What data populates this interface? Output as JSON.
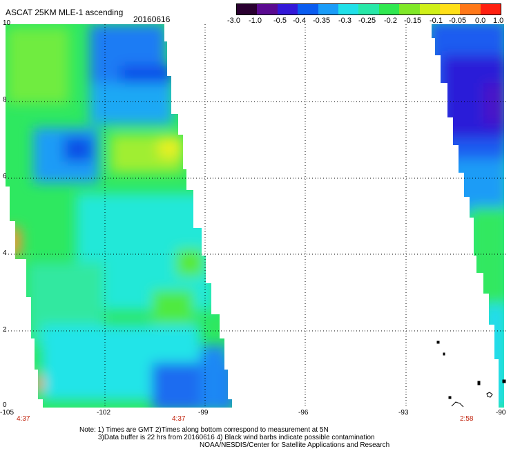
{
  "header": {
    "title": "ASCAT 25KM MLE-1 ascending",
    "date": "20160616"
  },
  "colorbar": {
    "tick_labels": [
      "-3.0",
      "-1.0",
      "-0.5",
      "-0.4",
      "-0.35",
      "-0.3",
      "-0.25",
      "-0.2",
      "-0.15",
      "-0.1",
      "-0.05",
      "0.0",
      "1.0"
    ],
    "colors": [
      "#2a0030",
      "#5a0a90",
      "#3318d8",
      "#0a5cf0",
      "#1a9cf8",
      "#20e0e8",
      "#28e8a8",
      "#30e850",
      "#80e828",
      "#d0f018",
      "#ffe018",
      "#ff7818",
      "#ff2010"
    ]
  },
  "map": {
    "lat_labels": [
      "10",
      "8",
      "6",
      "4",
      "2",
      "0"
    ],
    "lon_labels": [
      "-105",
      "-102",
      "-99",
      "-96",
      "-93",
      "-90"
    ],
    "pass_times": [
      "4:37",
      "4:37",
      "2:58"
    ]
  },
  "footer": {
    "line1": "Note: 1) Times are GMT 2)Times along bottom correspond to measurement at 5N",
    "line2": "3)Data buffer is 22 hrs from 20160616 4) Black wind barbs indicate possible contamination",
    "line3": "NOAA/NESDIS/Center for Satellite Applications and Research"
  }
}
